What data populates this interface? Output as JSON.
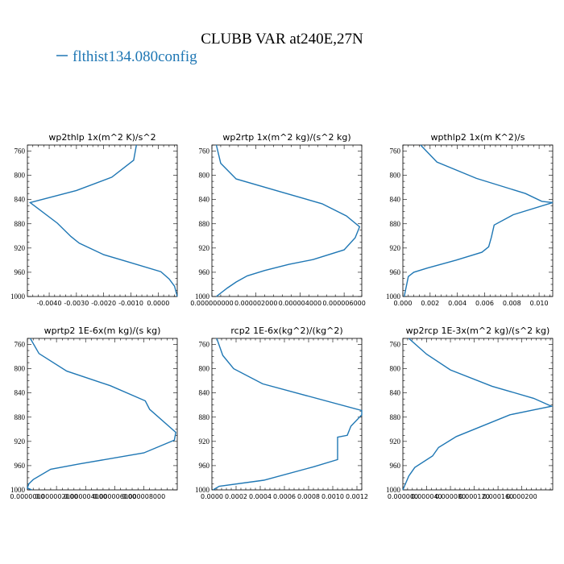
{
  "figure": {
    "title": "CLUBB VAR at240E,27N",
    "legend": {
      "label": "flthist134.080config",
      "color": "#1f77b4"
    }
  },
  "chart_data": [
    {
      "type": "line",
      "title": "wp2thlp  1x(m^2 K)/s^2",
      "xlim": [
        -0.0048,
        0.0007
      ],
      "ylim": [
        1000,
        750
      ],
      "yticks": [
        760,
        800,
        840,
        880,
        920,
        960,
        1000
      ],
      "xticks": [
        -0.004,
        -0.003,
        -0.002,
        -0.001,
        0.0
      ],
      "xtick_labels": [
        "-0.0040",
        "-0.0030",
        "-0.0020",
        "-0.0010",
        "0.0000"
      ],
      "series": [
        {
          "x": [
            -0.0008,
            -0.0009,
            -0.0017,
            -0.003,
            -0.0047,
            -0.0037,
            -0.0032,
            -0.0029,
            -0.002,
            -0.0011,
            0.0001,
            0.0004,
            0.0006,
            0.0007
          ],
          "y": [
            750,
            775,
            803,
            825,
            845,
            879,
            901,
            912,
            931,
            943,
            959,
            971,
            983,
            1000
          ]
        }
      ]
    },
    {
      "type": "line",
      "title": "wp2rtp  1x(m^2 kg)/(s^2 kg)",
      "xlim": [
        0.0,
        6.8e-06
      ],
      "ylim": [
        1000,
        750
      ],
      "yticks": [
        760,
        800,
        840,
        880,
        920,
        960,
        1000
      ],
      "xticks": [
        0.0,
        2e-06,
        4e-06,
        6e-06
      ],
      "xtick_labels": [
        "0.000000000",
        "0.000002000",
        "0.000004000",
        "0.000006000"
      ],
      "series": [
        {
          "x": [
            2e-07,
            4e-07,
            1.1e-06,
            3.1e-06,
            5e-06,
            6.1e-06,
            6.7e-06,
            6.5e-06,
            6e-06,
            4.6e-06,
            3.5e-06,
            2.4e-06,
            1.6e-06,
            1.1e-06,
            7e-07,
            2e-07
          ],
          "y": [
            750,
            780,
            806,
            827,
            847,
            867,
            885,
            903,
            923,
            939,
            947,
            957,
            966,
            976,
            986,
            1000
          ]
        }
      ]
    },
    {
      "type": "line",
      "title": "wpthlp2  1x(m K^2)/s",
      "xlim": [
        0.0,
        0.011
      ],
      "ylim": [
        1000,
        750
      ],
      "yticks": [
        760,
        800,
        840,
        880,
        920,
        960,
        1000
      ],
      "xticks": [
        0.0,
        0.002,
        0.004,
        0.006,
        0.008,
        0.01
      ],
      "xtick_labels": [
        "0.000",
        "0.002",
        "0.004",
        "0.006",
        "0.008",
        "0.010"
      ],
      "series": [
        {
          "x": [
            0.0013,
            0.0025,
            0.0054,
            0.009,
            0.0102,
            0.011,
            0.0081,
            0.0067,
            0.0065,
            0.0063,
            0.0058,
            0.0039,
            0.0018,
            0.0008,
            0.0004,
            0.0001
          ],
          "y": [
            750,
            778,
            805,
            830,
            843,
            845,
            865,
            882,
            902,
            918,
            927,
            940,
            953,
            960,
            967,
            1000
          ]
        }
      ]
    },
    {
      "type": "line",
      "title": "wprtp2  1E-6x(m kg)/(s kg)",
      "xlim": [
        0.0,
        1.03e-05
      ],
      "ylim": [
        1000,
        750
      ],
      "yticks": [
        760,
        800,
        840,
        880,
        920,
        960,
        1000
      ],
      "xticks": [
        0.0,
        2e-06,
        4e-06,
        6e-06,
        8e-06
      ],
      "xtick_labels": [
        "0.0000000",
        "0.000002000",
        "0.000004000",
        "0.000006000",
        "0.000008000"
      ],
      "series": [
        {
          "x": [
            2e-07,
            8e-07,
            2.7e-06,
            5.7e-06,
            8.1e-06,
            8.4e-06,
            1.02e-05,
            1.01e-05,
            8e-06,
            3.6e-06,
            1.6e-06,
            4e-07,
            1e-07,
            0.0,
            3e-07
          ],
          "y": [
            750,
            775,
            804,
            828,
            853,
            867,
            905,
            918,
            939,
            957,
            966,
            983,
            990,
            997,
            1000
          ]
        }
      ]
    },
    {
      "type": "line",
      "title": "rcp2  1E-6x(kg^2)/(kg^2)",
      "xlim": [
        0.0,
        0.00124
      ],
      "ylim": [
        1000,
        750
      ],
      "yticks": [
        760,
        800,
        840,
        880,
        920,
        960,
        1000
      ],
      "xticks": [
        0.0,
        0.0002,
        0.0004,
        0.0006,
        0.0008,
        0.001,
        0.0012
      ],
      "xtick_labels": [
        "0.0000",
        "0.0002",
        "0.0004",
        "0.0006",
        "0.0008",
        "0.0010",
        "0.0012"
      ],
      "series": [
        {
          "x": [
            4e-05,
            9e-05,
            0.00018,
            0.00042,
            0.00124,
            0.00124,
            0.00115,
            0.00112,
            0.00104,
            0.00104,
            0.00084,
            0.00043,
            6e-05,
            1e-05
          ],
          "y": [
            750,
            778,
            800,
            825,
            869,
            876,
            895,
            910,
            913,
            950,
            962,
            984,
            994,
            1000
          ]
        }
      ]
    },
    {
      "type": "line",
      "title": "wp2rcp  1E-3x(m^2 kg)/(s^2 kg)",
      "xlim": [
        0.0,
        0.000252
      ],
      "ylim": [
        1000,
        750
      ],
      "yticks": [
        760,
        800,
        840,
        880,
        920,
        960,
        1000
      ],
      "xticks": [
        0.0,
        4e-05,
        8e-05,
        0.00012,
        0.00016,
        0.0002
      ],
      "xtick_labels": [
        "0.000000",
        "0.000040",
        "0.000080",
        "0.000120",
        "0.000160",
        "0.000200"
      ],
      "series": [
        {
          "x": [
            1e-05,
            4e-05,
            8e-05,
            0.00015,
            0.00022,
            0.00025,
            0.00018,
            9e-05,
            6e-05,
            5e-05,
            2e-05,
            1e-05,
            0.0
          ],
          "y": [
            750,
            776,
            802,
            829,
            849,
            862,
            876,
            912,
            930,
            944,
            963,
            977,
            1000
          ]
        }
      ]
    }
  ]
}
